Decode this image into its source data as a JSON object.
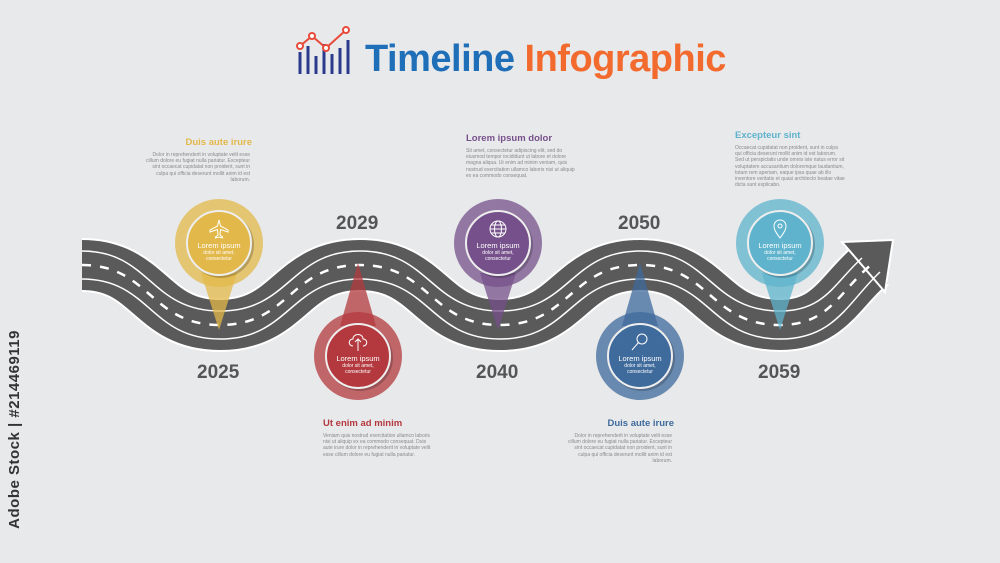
{
  "title": {
    "part1": "Timeline",
    "part2": "Infographic",
    "icon": "chart-icon"
  },
  "watermark": "Adobe Stock | #214469119",
  "milestones": [
    {
      "year": "2025",
      "heading": "Duis aute irure",
      "text": "Dolor in reprehenderit in voluptate velit esse cillum dolore eu fugiat nulla pariatur. Excepteur sint occaecat cupidatat non proident, sunt in culpa qui officia deserunt mollit anim id est laborum.",
      "label": "Lorem ipsum",
      "sub": "dolor sit amet, consectetur",
      "icon": "airplane-icon",
      "color": "#e3b84a"
    },
    {
      "year": "2029",
      "heading": "Ut enim ad minim",
      "text": "Veniam quis nostrud exercitation ullamco laboris nisi ut aliquip ex ea commodo consequat. Duis aute irure dolor in reprehenderit in voluptate velit esse cillum dolore eu fugiat nulla pariatur.",
      "label": "Lorem ipsum",
      "sub": "dolor sit amet, consectetur",
      "icon": "cloud-upload-icon",
      "color": "#b3393e"
    },
    {
      "year": "2040",
      "heading": "Lorem ipsum dolor",
      "text": "Sit amet, consectetur adipiscing elit, sed do eiusmod tempor incididunt ut labore et dolore magna aliqua. Ut enim ad minim veniam, quis nostrud exercitation ullamco laboris nisi ut aliquip ex ea commodo consequat.",
      "label": "Lorem ipsum",
      "sub": "dolor sit amet, consectetur",
      "icon": "globe-icon",
      "color": "#76508a"
    },
    {
      "year": "2050",
      "heading": "Duis aute irure",
      "text": "Dolor in reprehenderit in voluptate velit esse cillum dolore eu fugiat nulla pariatur. Excepteur sint occaecat cupidatat non proident, sunt in culpa qui officia deserunt mollit anim id est laborum.",
      "label": "Lorem ipsum",
      "sub": "dolor sit amet, consectetur",
      "icon": "magnifier-icon",
      "color": "#3f6a9c"
    },
    {
      "year": "2059",
      "heading": "Excepteur sint",
      "text": "Occaecat cupidatat non proident, sunt in culpa qui officia deserunt mollit anim id est laborum. Sed ut perspiciatis unde omnis iste natus error sit voluptatem accusantium doloremque laudantium, totam rem aperiam, eaque ipsa quae ab illo inventore veritatis et quasi architecto beatae vitae dicta sunt explicabo.",
      "label": "Lorem ipsum",
      "sub": "dolor sit amet, consectetur",
      "icon": "location-pin-icon",
      "color": "#5fb3cc"
    }
  ],
  "colors": {
    "road": "#5a5a5a",
    "year": "#555555"
  }
}
